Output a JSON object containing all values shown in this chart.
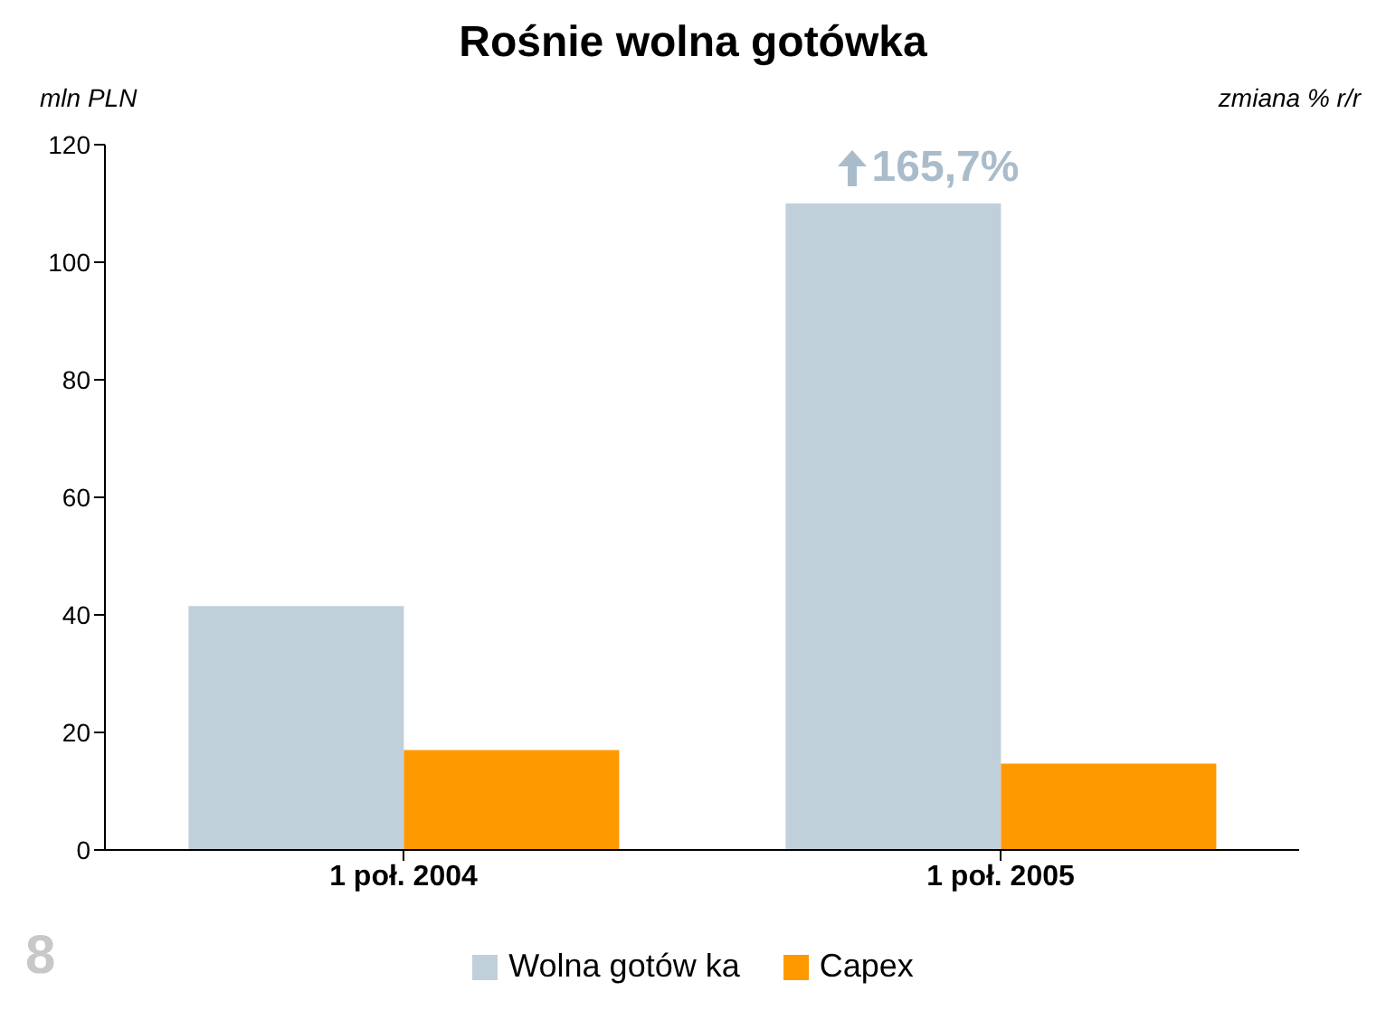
{
  "chart_data": {
    "type": "bar",
    "title": "Rośnie wolna gotówka",
    "ylabel": "mln PLN",
    "categories": [
      "1 poł. 2004",
      "1 poł. 2005"
    ],
    "series": [
      {
        "name": "Wolna gotów ka",
        "color": "#c0d0da",
        "values": [
          41.5,
          110
        ]
      },
      {
        "name": "Capex",
        "color": "#ff9900",
        "values": [
          17,
          14.7
        ]
      }
    ],
    "ylim": [
      0,
      120
    ],
    "yticks": [
      0,
      20,
      40,
      60,
      80,
      100,
      120
    ],
    "legend": "bottom",
    "annotations": [
      {
        "text": "165,7%",
        "x": "1 poł. 2005",
        "y": 110
      },
      "zmiana % r/r",
      "8"
    ]
  }
}
